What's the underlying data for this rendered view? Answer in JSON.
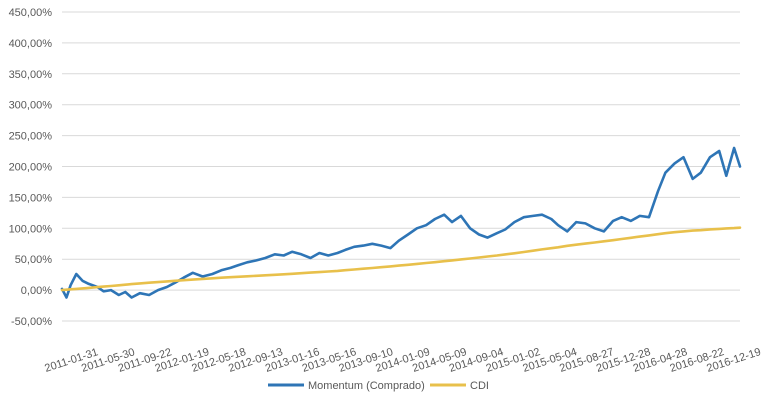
{
  "chart_data": {
    "type": "line",
    "title": "",
    "xlabel": "",
    "ylabel": "",
    "ylim": [
      -50,
      450
    ],
    "y_tick_values": [
      -50,
      0,
      50,
      100,
      150,
      200,
      250,
      300,
      350,
      400,
      450
    ],
    "y_tick_labels": [
      "-50,00%",
      "0,00%",
      "50,00%",
      "100,00%",
      "150,00%",
      "200,00%",
      "250,00%",
      "300,00%",
      "350,00%",
      "400,00%",
      "450,00%"
    ],
    "x_tick_labels": [
      "2011-01-31",
      "2011-05-30",
      "2011-09-22",
      "2012-01-19",
      "2012-05-18",
      "2012-09-13",
      "2013-01-16",
      "2013-05-16",
      "2013-09-10",
      "2014-01-09",
      "2014-05-09",
      "2014-09-04",
      "2015-01-02",
      "2015-05-04",
      "2015-08-27",
      "2015-12-28",
      "2016-04-28",
      "2016-08-22",
      "2016-12-19"
    ],
    "grid": true,
    "legend_position": "bottom",
    "x_dates": [
      "2011-01-31",
      "2011-02-15",
      "2011-03-01",
      "2011-03-20",
      "2011-04-10",
      "2011-05-01",
      "2011-05-30",
      "2011-06-20",
      "2011-07-15",
      "2011-08-10",
      "2011-09-01",
      "2011-09-22",
      "2011-10-20",
      "2011-11-20",
      "2011-12-20",
      "2012-01-19",
      "2012-02-15",
      "2012-03-15",
      "2012-04-15",
      "2012-05-18",
      "2012-06-20",
      "2012-07-20",
      "2012-08-20",
      "2012-09-13",
      "2012-10-15",
      "2012-11-15",
      "2012-12-15",
      "2013-01-16",
      "2013-02-15",
      "2013-03-15",
      "2013-04-15",
      "2013-05-16",
      "2013-06-15",
      "2013-07-15",
      "2013-08-15",
      "2013-09-10",
      "2013-10-10",
      "2013-11-10",
      "2013-12-10",
      "2014-01-09",
      "2014-02-09",
      "2014-03-09",
      "2014-04-09",
      "2014-05-09",
      "2014-06-09",
      "2014-07-09",
      "2014-08-09",
      "2014-09-04",
      "2014-10-04",
      "2014-11-04",
      "2014-12-04",
      "2015-01-02",
      "2015-02-02",
      "2015-03-02",
      "2015-04-02",
      "2015-05-04",
      "2015-06-04",
      "2015-07-04",
      "2015-08-04",
      "2015-08-27",
      "2015-09-27",
      "2015-10-27",
      "2015-11-27",
      "2015-12-28",
      "2016-01-28",
      "2016-02-28",
      "2016-03-28",
      "2016-04-28",
      "2016-05-28",
      "2016-06-28",
      "2016-07-28",
      "2016-08-22",
      "2016-09-22",
      "2016-10-22",
      "2016-11-22",
      "2016-12-19",
      "2017-01-19",
      "2017-02-19",
      "2017-03-15",
      "2017-04-10",
      "2017-04-30"
    ],
    "series": [
      {
        "name": "Momentum (Comprado)",
        "color": "#2E75B6",
        "values": [
          2,
          -12,
          8,
          26,
          15,
          10,
          5,
          -2,
          0,
          -8,
          -3,
          -12,
          -5,
          -8,
          0,
          5,
          12,
          20,
          28,
          22,
          26,
          32,
          36,
          40,
          45,
          48,
          52,
          58,
          56,
          62,
          58,
          52,
          60,
          56,
          60,
          65,
          70,
          72,
          75,
          72,
          68,
          80,
          90,
          100,
          105,
          115,
          122,
          110,
          120,
          100,
          90,
          85,
          92,
          98,
          110,
          118,
          120,
          122,
          115,
          105,
          95,
          110,
          108,
          100,
          95,
          112,
          118,
          112,
          120,
          118,
          160,
          190,
          205,
          215,
          180,
          190,
          215,
          225,
          185,
          230,
          200
        ]
      },
      {
        "name": "CDI",
        "color": "#E8C04B",
        "values": [
          0,
          0.7,
          1.3,
          2.0,
          2.8,
          3.6,
          4.8,
          5.7,
          6.7,
          7.8,
          8.8,
          9.7,
          10.8,
          11.9,
          13.0,
          14.1,
          15.0,
          16.0,
          17.0,
          18.2,
          19.1,
          20.0,
          20.8,
          21.5,
          22.3,
          23.1,
          23.9,
          24.8,
          25.6,
          26.4,
          27.3,
          28.3,
          29.2,
          30.1,
          31.1,
          32.2,
          33.4,
          34.6,
          35.8,
          37.1,
          38.4,
          39.7,
          41.0,
          42.4,
          43.8,
          45.2,
          46.7,
          48.0,
          49.6,
          51.2,
          52.8,
          54.4,
          56.0,
          57.8,
          59.6,
          61.6,
          63.7,
          65.8,
          67.8,
          69.3,
          71.7,
          73.4,
          75.2,
          77.0,
          78.9,
          80.8,
          82.7,
          84.7,
          86.6,
          88.5,
          90.4,
          92.0,
          93.7,
          95.0,
          96.2,
          97.0,
          98.2,
          99.0,
          99.8,
          100.4,
          100.9
        ]
      }
    ]
  }
}
